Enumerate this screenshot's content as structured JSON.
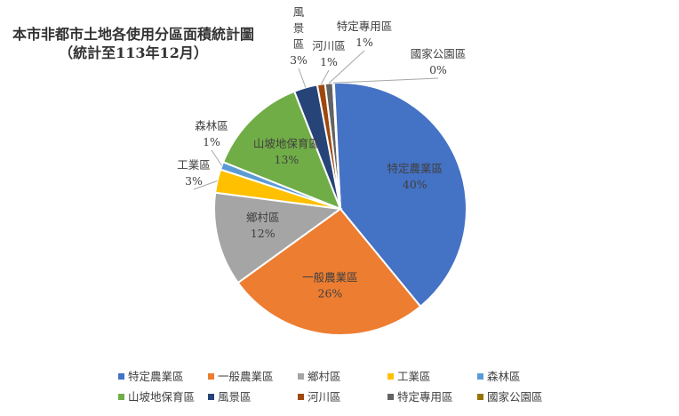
{
  "chart_data": {
    "type": "pie",
    "title": "本市非都市土地各使用分區面積統計圖",
    "subtitle": "（統計至113年12月）",
    "categories": [
      "特定農業區",
      "一般農業區",
      "鄉村區",
      "工業區",
      "森林區",
      "山坡地保育區",
      "風景區",
      "河川區",
      "特定專用區",
      "國家公園區"
    ],
    "values": [
      40,
      26,
      12,
      3,
      1,
      13,
      3,
      1,
      1,
      0
    ],
    "value_labels": [
      "40%",
      "26%",
      "12%",
      "3%",
      "1%",
      "13%",
      "3%",
      "1%",
      "1%",
      "0%"
    ],
    "slices": [
      {
        "label": "特定農業區",
        "value": 40,
        "display": "40%",
        "color": "#4472C4"
      },
      {
        "label": "一般農業區",
        "value": 26,
        "display": "26%",
        "color": "#ED7D31"
      },
      {
        "label": "鄉村區",
        "value": 12,
        "display": "12%",
        "color": "#A5A5A5"
      },
      {
        "label": "工業區",
        "value": 3,
        "display": "3%",
        "color": "#FFC000"
      },
      {
        "label": "森林區",
        "value": 1,
        "display": "1%",
        "color": "#5B9BD5"
      },
      {
        "label": "山坡地保育區",
        "value": 13,
        "display": "13%",
        "color": "#70AD47"
      },
      {
        "label": "風景區",
        "value": 3,
        "display": "3%",
        "color": "#264478"
      },
      {
        "label": "河川區",
        "value": 1,
        "display": "1%",
        "color": "#9E480E"
      },
      {
        "label": "特定專用區",
        "value": 1,
        "display": "1%",
        "color": "#636363"
      },
      {
        "label": "國家公園區",
        "value": 0,
        "display": "0%",
        "color": "#997300"
      }
    ],
    "legend_position": "bottom"
  }
}
